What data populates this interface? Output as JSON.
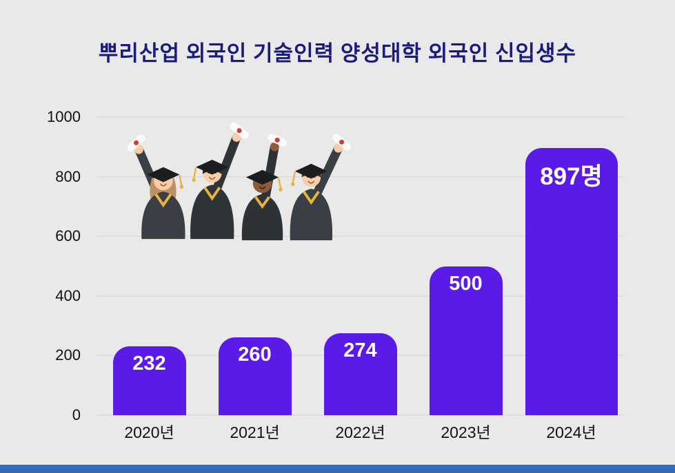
{
  "chart_data": {
    "type": "bar",
    "title": "뿌리산업 외국인 기술인력 양성대학 외국인 신입생수",
    "categories": [
      "2020년",
      "2021년",
      "2022년",
      "2023년",
      "2024년"
    ],
    "values": [
      232,
      260,
      274,
      500,
      897
    ],
    "bar_labels": [
      "232",
      "260",
      "274",
      "500",
      "897명"
    ],
    "xlabel": "",
    "ylabel": "",
    "ylim": [
      0,
      1000
    ],
    "yticks": [
      0,
      200,
      400,
      600,
      800,
      1000
    ],
    "grid": true,
    "legend_position": "none",
    "bar_color": "#5a1be9",
    "label_color": "#ffffff"
  },
  "colors": {
    "background": "#e9e9e9",
    "title_text": "#1b1b7e",
    "axis_text": "#111111",
    "gridline": "#d4d4d4",
    "footer_stripe": "#2f6db6"
  },
  "illustration": {
    "name": "graduates-celebrating-illustration"
  }
}
